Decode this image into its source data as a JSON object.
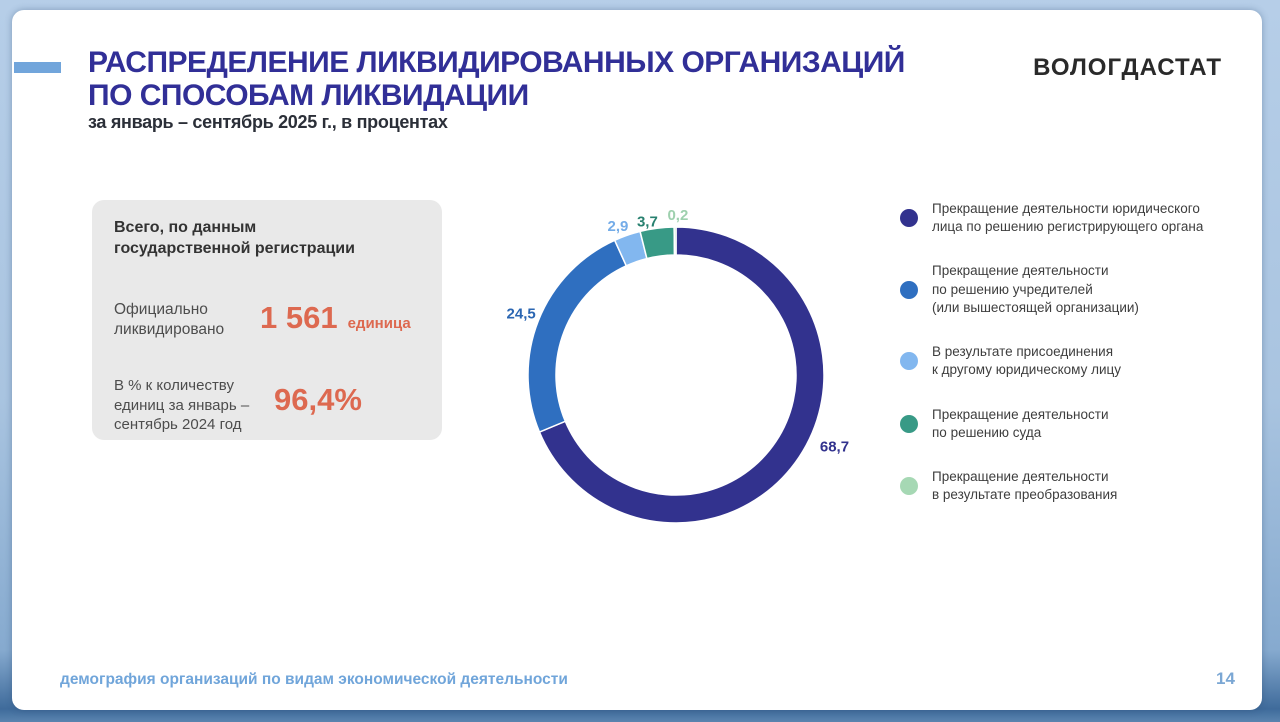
{
  "slide": {
    "title_lines": [
      "РАСПРЕДЕЛЕНИЕ ЛИКВИДИРОВАННЫХ ОРГАНИЗАЦИЙ",
      "ПО СПОСОБАМ ЛИКВИДАЦИИ"
    ],
    "subtitle": "за январь – сентябрь 2025 г., в процентах",
    "logo": "ВОЛОГДАСТАТ",
    "footer": "демография организаций по видам экономической деятельности",
    "page_number": "14"
  },
  "theme": {
    "title_color": "#312f97",
    "accent_blue": "#71a5db",
    "value_color": "#dd6950",
    "footer_blue": "#70a5da"
  },
  "summary_card": {
    "heading": "Всего, по данным государственной регистрации",
    "rows": [
      {
        "label": "Официально ликвидировано",
        "value": "1 561",
        "unit": "единица"
      },
      {
        "label": "В % к количеству единиц за январь – сентябрь 2024 год",
        "value": "96,4%",
        "unit": ""
      }
    ]
  },
  "chart_data": {
    "type": "pie",
    "subtype": "donut",
    "title": "Распределение ликвидированных организаций по способам ликвидации",
    "units": "проценты",
    "labels": [
      "Прекращение деятельности юридического лица по решению регистрирующего органа",
      "Прекращение деятельности по решению учредителей (или вышестоящей организации)",
      "В результате присоединения к другому юридическому лицу",
      "Прекращение деятельности по решению суда",
      "Прекращение деятельности в результате преобразования"
    ],
    "values": [
      68.7,
      24.5,
      2.9,
      3.7,
      0.2
    ],
    "value_labels": [
      "68,7",
      "24,5",
      "2,9",
      "3,7",
      "0,2"
    ],
    "colors": [
      "#32328e",
      "#2f6fc0",
      "#82b7ef",
      "#389a86",
      "#a6d8b4"
    ],
    "label_colors": [
      "#32328e",
      "#2b66b2",
      "#74ace8",
      "#27806f",
      "#9ed0ae"
    ],
    "start_angle_deg": 0,
    "direction": "clockwise",
    "legend_position": "right"
  },
  "legend": {
    "items": [
      {
        "label": "Прекращение деятельности юридического\nлица по решению регистрирующего органа"
      },
      {
        "label": "Прекращение деятельности\nпо решению учредителей\n(или вышестоящей организации)"
      },
      {
        "label": "В результате присоединения\nк другому юридическому лицу"
      },
      {
        "label": "Прекращение деятельности\nпо решению суда"
      },
      {
        "label": "Прекращение деятельности\nв результате преобразования"
      }
    ]
  }
}
